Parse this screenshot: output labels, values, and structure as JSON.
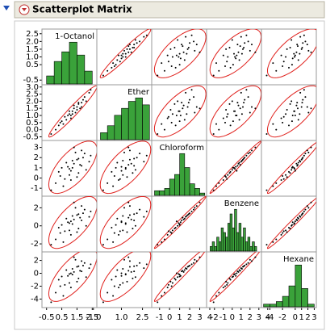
{
  "chart_data": {
    "type": "scatter_matrix",
    "title": "Scatterplot Matrix",
    "point_color": "#000000",
    "ellipse_color": "#e0201c",
    "bar_color": "#3aa23a",
    "variables": [
      {
        "name": "1-Octanol",
        "lim": [
          -0.75,
          2.75
        ],
        "yticks": [
          2.5,
          {
            "value": 2.0,
            "label": "2.0"
          },
          1.5,
          {
            "value": 1.0,
            "label": "1.0"
          },
          0.5,
          -0.5
        ],
        "xticks": [
          -0.5,
          0.5,
          1.5,
          2.5
        ],
        "bins": [
          -0.5,
          0,
          0.5,
          1,
          1.5,
          2,
          2.5
        ],
        "counts": [
          5,
          14,
          20,
          26,
          18,
          8
        ]
      },
      {
        "name": "Ether",
        "lim": [
          -0.7,
          3.1
        ],
        "yticks": [
          {
            "value": 3.0,
            "label": "3.0"
          },
          2.5,
          {
            "value": 2.0,
            "label": "2.0"
          },
          1.5,
          {
            "value": 1.0,
            "label": "1.0"
          },
          0.5,
          {
            "value": 0.0,
            "label": "0.0"
          },
          -0.5
        ],
        "xticks": [
          {
            "value": -1.0,
            "label": "-1.0"
          },
          {
            "value": 1.0,
            "label": "1.0"
          },
          2.5
        ],
        "bins": [
          -0.5,
          0,
          0.5,
          1,
          1.5,
          2,
          2.5,
          3
        ],
        "counts": [
          4,
          8,
          14,
          18,
          22,
          24,
          20
        ]
      },
      {
        "name": "Chloroform",
        "lim": [
          -1.7,
          3.6
        ],
        "yticks": [
          3,
          2,
          1,
          0,
          -1
        ],
        "xticks": [
          -1,
          0,
          1,
          2,
          3,
          4
        ],
        "bins": [
          -1.5,
          -1,
          -0.5,
          0,
          0.5,
          1,
          1.5,
          2,
          2.5,
          3,
          3.5
        ],
        "counts": [
          2,
          2,
          3,
          7,
          9,
          18,
          12,
          5,
          3,
          1
        ]
      },
      {
        "name": "Benzene",
        "lim": [
          -2.8,
          3.2
        ],
        "yticks": [
          2,
          0,
          -2
        ],
        "xticks": [
          -2,
          -1,
          0,
          1,
          2,
          3,
          4
        ],
        "bins": [
          -2.5,
          -2.25,
          -2,
          -1.75,
          -1.5,
          -1.25,
          -1,
          -0.75,
          -0.5,
          -0.25,
          0,
          0.25,
          0.5,
          0.75,
          1,
          1.25,
          1.5,
          1.75,
          2,
          2.25,
          2.5,
          2.75
        ],
        "counts": [
          1,
          2,
          1,
          3,
          2,
          5,
          4,
          3,
          6,
          8,
          5,
          9,
          4,
          6,
          3,
          5,
          2,
          3,
          1,
          2,
          1
        ]
      },
      {
        "name": "Hexane",
        "lim": [
          -5.2,
          3.2
        ],
        "yticks": [
          2,
          0,
          -2,
          -4
        ],
        "xticks": [
          -4,
          -2,
          0,
          1,
          2,
          3
        ],
        "bins": [
          -5,
          -4,
          -3,
          -2,
          -1,
          0,
          1,
          2,
          3
        ],
        "counts": [
          1,
          1,
          2,
          4,
          8,
          16,
          7,
          1
        ]
      }
    ],
    "observations": [
      [
        0.1,
        0.0,
        -0.5,
        -1.5,
        -3.0
      ],
      [
        0.4,
        0.5,
        0.2,
        -0.8,
        -2.0
      ],
      [
        0.8,
        0.7,
        1.5,
        0.8,
        0.5
      ],
      [
        1.0,
        1.1,
        0.3,
        -0.5,
        -1.5
      ],
      [
        1.2,
        1.3,
        1.0,
        0.2,
        -0.2
      ],
      [
        1.5,
        1.6,
        1.8,
        1.2,
        1.0
      ],
      [
        1.8,
        1.9,
        1.2,
        0.6,
        0.3
      ],
      [
        2.0,
        2.3,
        2.4,
        1.8,
        1.6
      ],
      [
        2.3,
        2.6,
        1.6,
        1.0,
        0.8
      ],
      [
        0.6,
        0.4,
        -0.8,
        -1.8,
        -3.5
      ],
      [
        1.4,
        1.2,
        2.5,
        2.0,
        2.1
      ],
      [
        1.6,
        1.8,
        0.5,
        -0.3,
        -0.8
      ],
      [
        0.9,
        1.0,
        1.1,
        0.4,
        -0.4
      ],
      [
        1.1,
        0.8,
        -0.2,
        -1.0,
        -2.2
      ],
      [
        1.7,
        1.5,
        1.3,
        0.9,
        0.4
      ],
      [
        2.1,
        2.0,
        0.8,
        0.0,
        -0.6
      ],
      [
        0.3,
        0.3,
        0.6,
        -0.2,
        -1.0
      ],
      [
        1.3,
        1.5,
        3.0,
        2.6,
        2.5
      ],
      [
        1.9,
        2.1,
        2.0,
        1.4,
        1.2
      ],
      [
        0.7,
        0.9,
        -0.1,
        -0.6,
        -1.8
      ],
      [
        1.2,
        1.1,
        1.7,
        1.1,
        0.7
      ],
      [
        2.4,
        2.8,
        2.2,
        1.6,
        1.4
      ],
      [
        1.0,
        1.3,
        0.9,
        0.3,
        -0.1
      ],
      [
        0.5,
        0.6,
        1.0,
        0.1,
        -0.5
      ],
      [
        1.5,
        1.4,
        0.1,
        -0.7,
        -1.3
      ],
      [
        1.3,
        1.7,
        1.4,
        0.7,
        0.2
      ],
      [
        -0.2,
        -0.3,
        -1.2,
        -2.1,
        -4.5
      ],
      [
        1.8,
        1.6,
        2.7,
        2.2,
        1.9
      ],
      [
        1.1,
        1.0,
        0.7,
        0.5,
        0.0
      ],
      [
        1.6,
        1.9,
        1.9,
        1.3,
        1.1
      ]
    ]
  }
}
